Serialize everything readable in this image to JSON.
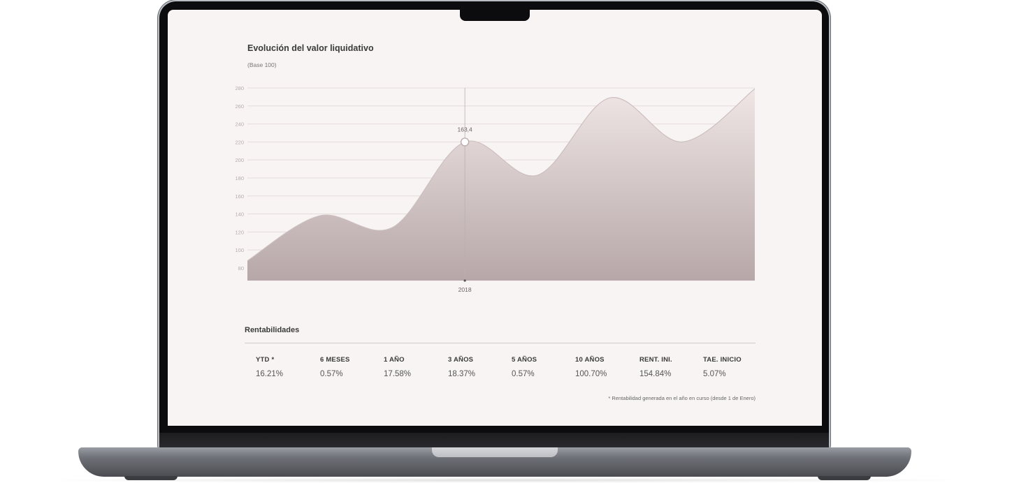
{
  "chart_data": {
    "type": "area",
    "title": "Evolución del valor liquidativo",
    "subtitle": "(Base 100)",
    "xlabel": "",
    "ylabel": "",
    "ylim": [
      66,
      280
    ],
    "y_ticks": [
      "280",
      "260",
      "240",
      "220",
      "200",
      "180",
      "160",
      "140",
      "120",
      "100",
      "80"
    ],
    "x_ticks": [
      "2018"
    ],
    "grid": true,
    "series": [
      {
        "values": [
          88,
          138,
          125,
          220,
          183,
          269,
          220,
          279
        ]
      }
    ],
    "tooltip": {
      "label": "163,4",
      "x_tick": "2018"
    },
    "colors": {
      "fill_top": "#efe6e5",
      "fill_bottom": "#b7a7a8",
      "line": "#cdbfbf",
      "grid": "#e3dcdb"
    }
  },
  "returns": {
    "title": "Rentabilidades",
    "columns": [
      {
        "label": "YTD *",
        "value": "16.21%"
      },
      {
        "label": "6 MESES",
        "value": "0.57%"
      },
      {
        "label": "1 AÑO",
        "value": "17.58%"
      },
      {
        "label": "3 AÑOS",
        "value": "18.37%"
      },
      {
        "label": "5 AÑOS",
        "value": "0.57%"
      },
      {
        "label": "10 AÑOS",
        "value": "100.70%"
      },
      {
        "label": "RENT. INI.",
        "value": "154.84%"
      },
      {
        "label": "TAE. INICIO",
        "value": "5.07%"
      }
    ],
    "footnote": "* Rentabilidad generada en el año en curso (desde 1 de Enero)"
  }
}
